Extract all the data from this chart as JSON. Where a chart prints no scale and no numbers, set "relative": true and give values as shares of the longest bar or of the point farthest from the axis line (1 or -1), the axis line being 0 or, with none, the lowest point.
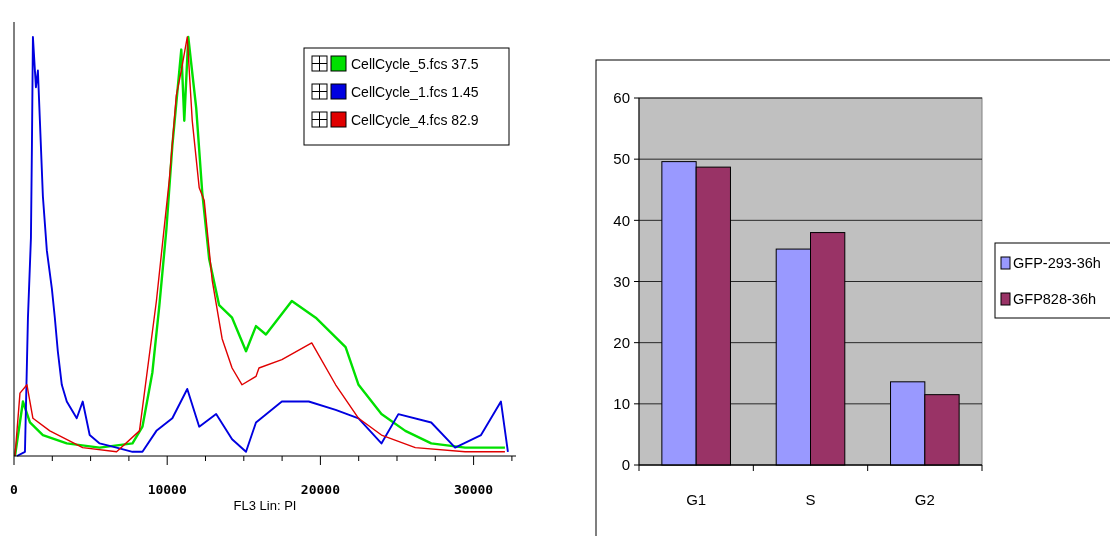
{
  "chart_data": [
    {
      "type": "line",
      "relative": true,
      "xlabel": "FL3 Lin: PI",
      "xlim": [
        0,
        32768
      ],
      "xticks": [
        0,
        {
          "value": 2500,
          "label": null
        },
        {
          "value": 5000,
          "label": null
        },
        {
          "value": 7500,
          "label": null
        },
        10000,
        {
          "value": 12500,
          "label": null
        },
        {
          "value": 15000,
          "label": null
        },
        {
          "value": 17500,
          "label": null
        },
        20000,
        {
          "value": 22500,
          "label": null
        },
        {
          "value": 25000,
          "label": null
        },
        {
          "value": 27500,
          "label": null
        },
        30000,
        {
          "value": 32500,
          "label": null
        }
      ],
      "legend": "top right",
      "grid": false,
      "marker": "none",
      "line_style": "solid",
      "series": [
        {
          "name": "CellCycle_5.fcs 37.5",
          "color": "#00e000",
          "x": [
            65,
            585,
            1040,
            1885,
            3445,
            5590,
            7735,
            8385,
            9035,
            9490,
            9945,
            10335,
            10920,
            11115,
            11375,
            11895,
            12285,
            12740,
            13390,
            14235,
            15145,
            15795,
            16445,
            18135,
            19695,
            21645,
            22490,
            23985,
            25545,
            27235,
            29445,
            32045
          ],
          "values": [
            0,
            0.13,
            0.08,
            0.05,
            0.03,
            0.02,
            0.03,
            0.07,
            0.2,
            0.36,
            0.54,
            0.74,
            0.97,
            0.8,
            1.0,
            0.83,
            0.63,
            0.47,
            0.36,
            0.33,
            0.25,
            0.31,
            0.29,
            0.37,
            0.33,
            0.26,
            0.17,
            0.1,
            0.06,
            0.03,
            0.02,
            0.02
          ]
        },
        {
          "name": "CellCycle_1.fcs 1.45",
          "color": "#0000e0",
          "x": [
            195,
            715,
            910,
            1105,
            1170,
            1235,
            1430,
            1560,
            1690,
            1885,
            2145,
            2470,
            2665,
            2860,
            3120,
            3445,
            4095,
            4485,
            4940,
            5590,
            6695,
            7735,
            8385,
            9295,
            10335,
            11310,
            12090,
            13195,
            14235,
            15145,
            15795,
            17485,
            19240,
            20995,
            22490,
            23985,
            25090,
            27235,
            28795,
            30485,
            31785,
            32240
          ],
          "values": [
            0,
            0.01,
            0.33,
            0.52,
            0.74,
            1.0,
            0.88,
            0.92,
            0.8,
            0.62,
            0.49,
            0.4,
            0.33,
            0.25,
            0.17,
            0.13,
            0.09,
            0.13,
            0.05,
            0.03,
            0.02,
            0.01,
            0.01,
            0.06,
            0.09,
            0.16,
            0.07,
            0.1,
            0.04,
            0.01,
            0.08,
            0.13,
            0.13,
            0.11,
            0.09,
            0.03,
            0.1,
            0.08,
            0.02,
            0.05,
            0.13,
            0.01
          ]
        },
        {
          "name": "CellCycle_4.fcs 82.9",
          "color": "#e00000",
          "x": [
            65,
            390,
            845,
            1235,
            2340,
            4485,
            6695,
            8190,
            9295,
            10140,
            10595,
            10920,
            11310,
            11635,
            12090,
            12415,
            12935,
            13585,
            14235,
            14885,
            15795,
            15990,
            17485,
            19435,
            20995,
            22490,
            23985,
            26195,
            29445,
            32045
          ],
          "values": [
            0,
            0.15,
            0.17,
            0.09,
            0.06,
            0.02,
            0.01,
            0.06,
            0.37,
            0.66,
            0.86,
            0.92,
            1.0,
            0.8,
            0.64,
            0.61,
            0.42,
            0.28,
            0.21,
            0.17,
            0.19,
            0.21,
            0.23,
            0.27,
            0.17,
            0.09,
            0.05,
            0.02,
            0.01,
            0.01
          ]
        }
      ]
    },
    {
      "type": "bar",
      "categories": [
        "G1",
        "S",
        "G2"
      ],
      "ylim": [
        0,
        60
      ],
      "yticks": [
        0,
        10,
        20,
        30,
        40,
        50,
        60
      ],
      "grid": "y",
      "legend": "right",
      "series": [
        {
          "name": "GFP-293-36h",
          "color": "#9999ff",
          "values": [
            49.6,
            35.3,
            13.6
          ]
        },
        {
          "name": "GFP828-36h",
          "color": "#993366",
          "values": [
            48.7,
            38,
            11.5
          ]
        }
      ]
    }
  ]
}
